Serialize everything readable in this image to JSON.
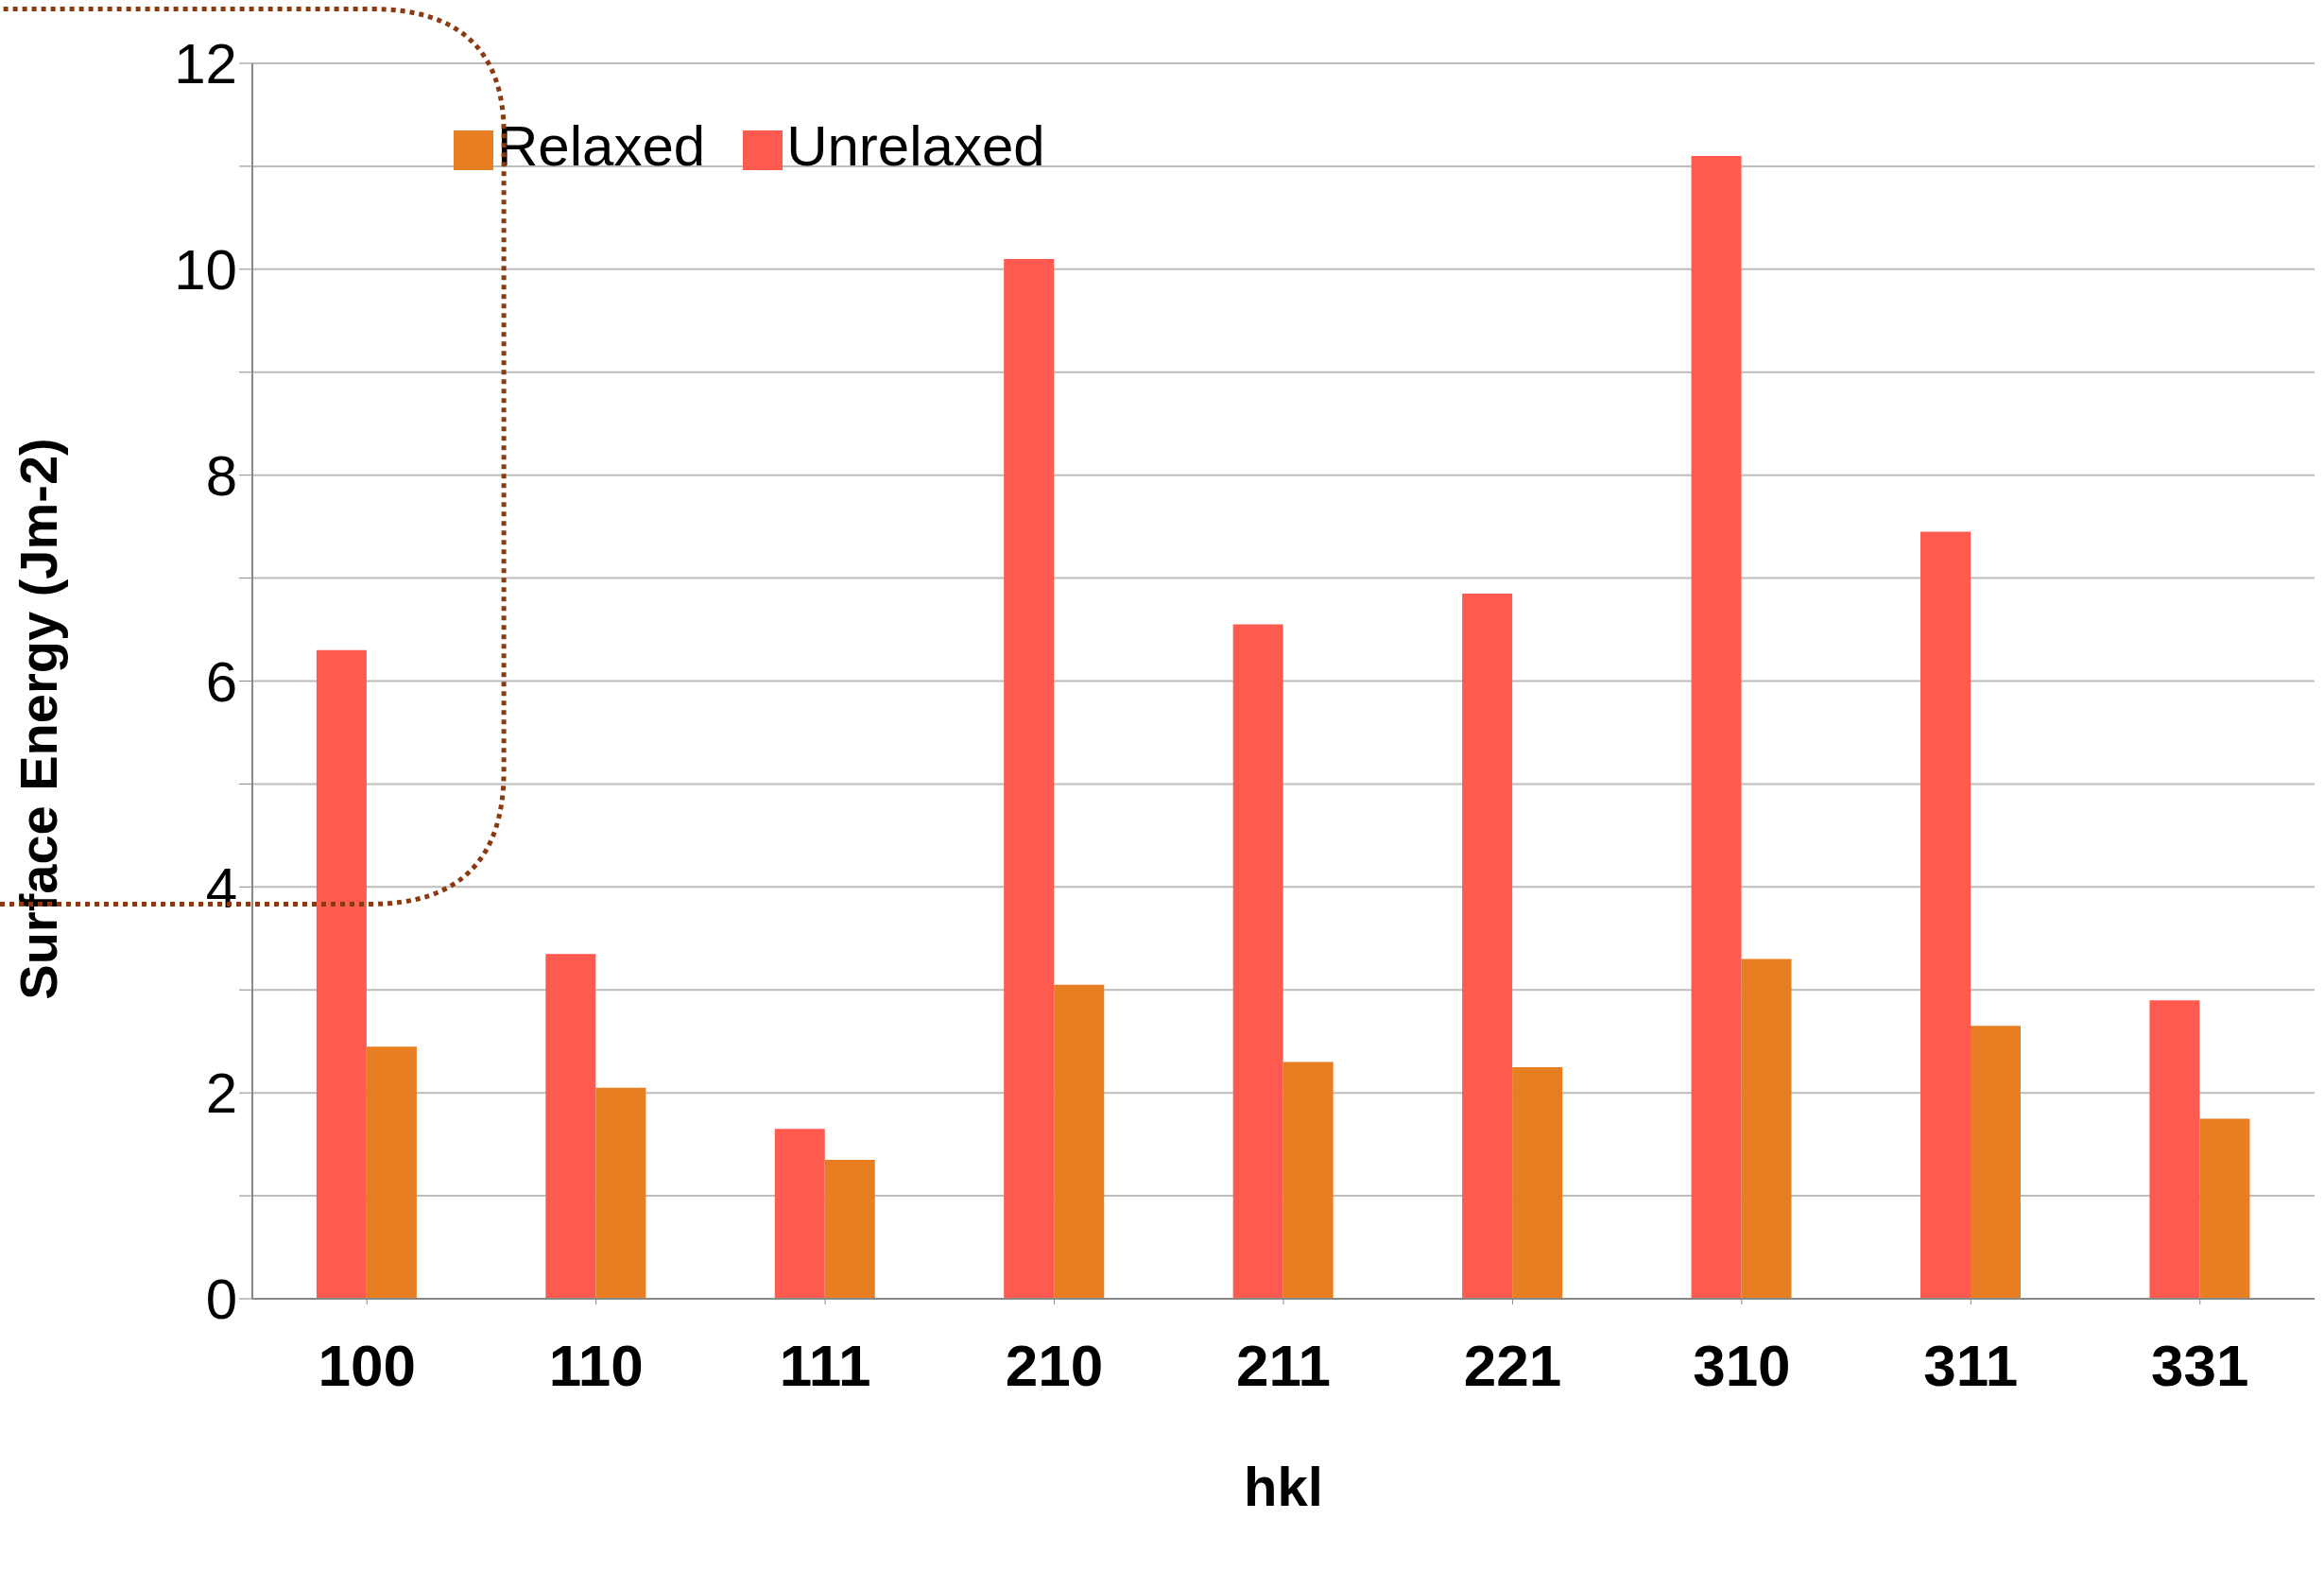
{
  "chart_data": {
    "type": "bar",
    "xlabel": "hkl",
    "ylabel": "Surface Energy (Jm-2)",
    "categories": [
      "100",
      "110",
      "111",
      "210",
      "211",
      "221",
      "310",
      "311",
      "331"
    ],
    "series": [
      {
        "name": "Unrelaxed",
        "color": "#ff5a4f",
        "values": [
          6.3,
          3.35,
          1.65,
          10.1,
          6.55,
          6.85,
          11.1,
          7.45,
          2.9
        ]
      },
      {
        "name": "Relaxed",
        "color": "#e87e22",
        "values": [
          2.45,
          2.05,
          1.35,
          3.05,
          2.3,
          2.25,
          3.3,
          2.65,
          1.75
        ]
      }
    ],
    "ylim": [
      0,
      12
    ],
    "yticks": [
      0,
      {
        "value": 1,
        "label": null
      },
      2,
      {
        "value": 3,
        "label": null
      },
      4,
      {
        "value": 5,
        "label": null
      },
      6,
      {
        "value": 7,
        "label": null
      },
      8,
      {
        "value": 9,
        "label": null
      },
      10,
      {
        "value": 11,
        "label": null
      },
      12
    ],
    "grid": "y",
    "legend": "top"
  }
}
